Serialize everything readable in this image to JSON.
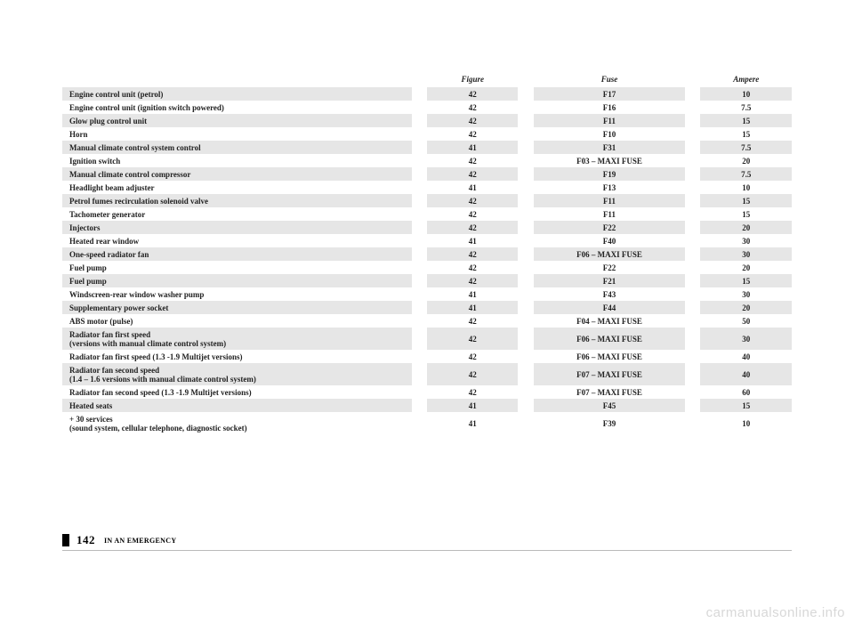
{
  "headers": {
    "figure": "Figure",
    "fuse": "Fuse",
    "ampere": "Ampere"
  },
  "rows": [
    {
      "desc": "Engine control unit (petrol)",
      "figure": "42",
      "fuse": "F17",
      "ampere": "10"
    },
    {
      "desc": "Engine control unit (ignition switch powered)",
      "figure": "42",
      "fuse": "F16",
      "ampere": "7.5"
    },
    {
      "desc": "Glow plug control unit",
      "figure": "42",
      "fuse": "F11",
      "ampere": "15"
    },
    {
      "desc": "Horn",
      "figure": "42",
      "fuse": "F10",
      "ampere": "15"
    },
    {
      "desc": "Manual climate control system control",
      "figure": "41",
      "fuse": "F31",
      "ampere": "7.5"
    },
    {
      "desc": "Ignition switch",
      "figure": "42",
      "fuse": "F03 – MAXI FUSE",
      "ampere": "20"
    },
    {
      "desc": "Manual climate control compressor",
      "figure": "42",
      "fuse": "F19",
      "ampere": "7.5"
    },
    {
      "desc": "Headlight beam adjuster",
      "figure": "41",
      "fuse": "F13",
      "ampere": "10"
    },
    {
      "desc": "Petrol fumes recirculation solenoid valve",
      "figure": "42",
      "fuse": "F11",
      "ampere": "15"
    },
    {
      "desc": "Tachometer generator",
      "figure": "42",
      "fuse": "F11",
      "ampere": "15"
    },
    {
      "desc": "Injectors",
      "figure": "42",
      "fuse": "F22",
      "ampere": "20"
    },
    {
      "desc": "Heated rear window",
      "figure": "41",
      "fuse": "F40",
      "ampere": "30"
    },
    {
      "desc": "One-speed radiator fan",
      "figure": "42",
      "fuse": "F06 – MAXI FUSE",
      "ampere": "30"
    },
    {
      "desc": "Fuel pump",
      "figure": "42",
      "fuse": "F22",
      "ampere": "20"
    },
    {
      "desc": "Fuel pump",
      "figure": "42",
      "fuse": "F21",
      "ampere": "15"
    },
    {
      "desc": "Windscreen-rear window washer pump",
      "figure": "41",
      "fuse": "F43",
      "ampere": "30"
    },
    {
      "desc": "Supplementary power socket",
      "figure": "41",
      "fuse": "F44",
      "ampere": "20"
    },
    {
      "desc": "ABS motor (pulse)",
      "figure": "42",
      "fuse": "F04 – MAXI FUSE",
      "ampere": "50"
    },
    {
      "desc": "Radiator fan first speed\n(versions with manual climate control system)",
      "figure": "42",
      "fuse": "F06 – MAXI FUSE",
      "ampere": "30"
    },
    {
      "desc": "Radiator fan first speed (1.3 -1.9 Multijet versions)",
      "figure": "42",
      "fuse": "F06 – MAXI FUSE",
      "ampere": "40"
    },
    {
      "desc": "Radiator fan second speed\n(1.4 – 1.6 versions with manual climate control system)",
      "figure": "42",
      "fuse": "F07 – MAXI FUSE",
      "ampere": "40"
    },
    {
      "desc": "Radiator fan second speed (1.3 -1.9 Multijet versions)",
      "figure": "42",
      "fuse": "F07 – MAXI FUSE",
      "ampere": "60"
    },
    {
      "desc": "Heated seats",
      "figure": "41",
      "fuse": "F45",
      "ampere": "15"
    },
    {
      "desc": "+ 30 services\n(sound system, cellular telephone, diagnostic socket)",
      "figure": "41",
      "fuse": "F39",
      "ampere": "10"
    }
  ],
  "footer": {
    "pageNum": "142",
    "section": "IN AN EMERGENCY"
  },
  "watermark": "carmanualsonline.info"
}
